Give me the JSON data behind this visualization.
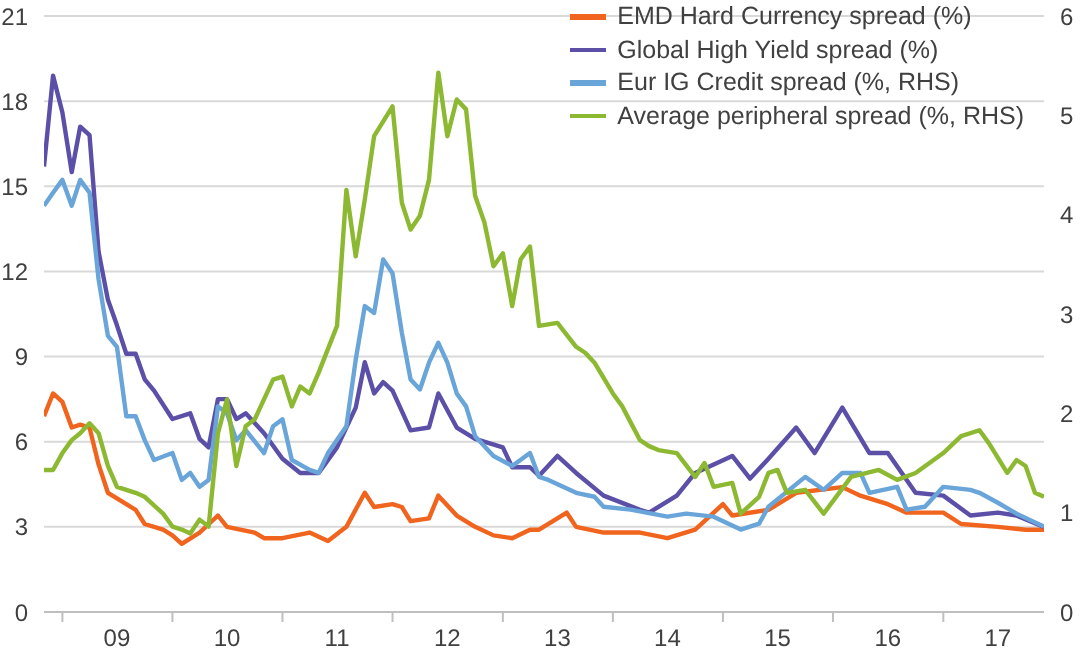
{
  "chart_data": {
    "type": "line",
    "xlim": [
      "2008-11-01",
      "2017-12-01"
    ],
    "xticks": [
      {
        "value": "2009-01-01",
        "label": null
      },
      {
        "value": "2009-07-01",
        "label": "09"
      },
      {
        "value": "2010-01-01",
        "label": null
      },
      {
        "value": "2010-07-01",
        "label": "10"
      },
      {
        "value": "2011-01-01",
        "label": null
      },
      {
        "value": "2011-07-01",
        "label": "11"
      },
      {
        "value": "2012-01-01",
        "label": null
      },
      {
        "value": "2012-07-01",
        "label": "12"
      },
      {
        "value": "2013-01-01",
        "label": null
      },
      {
        "value": "2013-07-01",
        "label": "13"
      },
      {
        "value": "2014-01-01",
        "label": null
      },
      {
        "value": "2014-07-01",
        "label": "14"
      },
      {
        "value": "2015-01-01",
        "label": null
      },
      {
        "value": "2015-07-01",
        "label": "15"
      },
      {
        "value": "2016-01-01",
        "label": null
      },
      {
        "value": "2016-07-01",
        "label": "16"
      },
      {
        "value": "2017-01-01",
        "label": null
      },
      {
        "value": "2017-07-01",
        "label": "17"
      }
    ],
    "ylim": [
      0,
      21
    ],
    "yticks": [
      0,
      3,
      6,
      9,
      12,
      15,
      18,
      21
    ],
    "y2lim": [
      0,
      6
    ],
    "y2ticks": [
      0,
      1,
      2,
      3,
      4,
      5,
      6
    ],
    "grid": "y",
    "legend": "top right",
    "marker": "none",
    "line_style": "solid",
    "series": [
      {
        "name": "EMD Hard Currency spread (%)",
        "color": "#f0641e",
        "x": [
          "2008-11",
          "2008-12",
          "2009-01",
          "2009-02",
          "2009-03",
          "2009-04",
          "2009-05",
          "2009-06",
          "2009-07",
          "2009-09",
          "2009-10",
          "2009-12",
          "2010-01",
          "2010-02",
          "2010-04",
          "2010-06",
          "2010-07",
          "2010-10",
          "2010-11",
          "2011-01",
          "2011-04",
          "2011-06",
          "2011-08",
          "2011-10",
          "2011-11",
          "2012-01",
          "2012-02",
          "2012-03",
          "2012-05",
          "2012-06",
          "2012-08",
          "2012-10",
          "2012-12",
          "2013-02",
          "2013-04",
          "2013-05",
          "2013-08",
          "2013-09",
          "2013-12",
          "2014-04",
          "2014-07",
          "2014-10",
          "2015-01",
          "2015-02",
          "2015-06",
          "2015-09",
          "2016-02",
          "2016-04",
          "2016-07",
          "2016-09",
          "2017-01",
          "2017-03",
          "2017-07",
          "2017-10",
          "2017-12"
        ],
        "values": [
          6.9,
          7.7,
          7.4,
          6.5,
          6.6,
          6.5,
          5.2,
          4.2,
          4.0,
          3.6,
          3.1,
          2.9,
          2.7,
          2.4,
          2.8,
          3.4,
          3.0,
          2.8,
          2.6,
          2.6,
          2.8,
          2.5,
          3.0,
          4.2,
          3.7,
          3.8,
          3.7,
          3.2,
          3.3,
          4.1,
          3.4,
          3.0,
          2.7,
          2.6,
          2.9,
          2.9,
          3.5,
          3.0,
          2.8,
          2.8,
          2.6,
          2.9,
          3.8,
          3.4,
          3.6,
          4.2,
          4.4,
          4.1,
          3.8,
          3.5,
          3.5,
          3.1,
          3.0,
          2.9,
          2.9
        ]
      },
      {
        "name": "Global High Yield spread (%)",
        "color": "#5b4fa8",
        "x": [
          "2008-11",
          "2008-12",
          "2009-01",
          "2009-02",
          "2009-03",
          "2009-04",
          "2009-05",
          "2009-06",
          "2009-07",
          "2009-08",
          "2009-09",
          "2009-10",
          "2009-11",
          "2010-01",
          "2010-03",
          "2010-04",
          "2010-05",
          "2010-06",
          "2010-07",
          "2010-08",
          "2010-09",
          "2010-11",
          "2011-01",
          "2011-03",
          "2011-05",
          "2011-07",
          "2011-09",
          "2011-10",
          "2011-11",
          "2011-12",
          "2012-01",
          "2012-03",
          "2012-05",
          "2012-06",
          "2012-08",
          "2012-10",
          "2013-01",
          "2013-02",
          "2013-04",
          "2013-05",
          "2013-07",
          "2013-09",
          "2013-12",
          "2014-04",
          "2014-05",
          "2014-08",
          "2014-10",
          "2015-02",
          "2015-04",
          "2015-06",
          "2015-09",
          "2015-11",
          "2016-02",
          "2016-05",
          "2016-07",
          "2016-10",
          "2017-01",
          "2017-04",
          "2017-07",
          "2017-09",
          "2017-12"
        ],
        "values": [
          15.7,
          18.9,
          17.6,
          15.5,
          17.1,
          16.8,
          12.7,
          11.0,
          10.1,
          9.1,
          9.1,
          8.2,
          7.8,
          6.8,
          7.0,
          6.1,
          5.8,
          7.5,
          7.5,
          6.8,
          7.0,
          6.3,
          5.4,
          4.9,
          4.9,
          5.8,
          7.2,
          8.8,
          7.7,
          8.1,
          7.8,
          6.4,
          6.5,
          7.7,
          6.5,
          6.1,
          5.8,
          5.1,
          5.1,
          4.8,
          5.5,
          4.9,
          4.1,
          3.6,
          3.5,
          4.1,
          4.9,
          5.5,
          4.7,
          5.4,
          6.5,
          5.6,
          7.2,
          5.6,
          5.6,
          4.2,
          4.1,
          3.4,
          3.5,
          3.4,
          3.0
        ]
      },
      {
        "name": "Eur IG Credit spread (%, RHS)",
        "color": "#69a5d9",
        "axis": "y2",
        "x": [
          "2008-11",
          "2008-12",
          "2009-01",
          "2009-02",
          "2009-03",
          "2009-04",
          "2009-05",
          "2009-06",
          "2009-07",
          "2009-08",
          "2009-09",
          "2009-10",
          "2009-11",
          "2010-01",
          "2010-02",
          "2010-03",
          "2010-04",
          "2010-05",
          "2010-06",
          "2010-07",
          "2010-08",
          "2010-09",
          "2010-11",
          "2010-12",
          "2011-01",
          "2011-02",
          "2011-04",
          "2011-05",
          "2011-06",
          "2011-08",
          "2011-09",
          "2011-10",
          "2011-11",
          "2011-12",
          "2012-01",
          "2012-02",
          "2012-03",
          "2012-04",
          "2012-05",
          "2012-06",
          "2012-07",
          "2012-08",
          "2012-09",
          "2012-10",
          "2012-12",
          "2013-02",
          "2013-04",
          "2013-05",
          "2013-06",
          "2013-09",
          "2013-11",
          "2013-12",
          "2014-03",
          "2014-07",
          "2014-09",
          "2014-12",
          "2015-03",
          "2015-05",
          "2015-06",
          "2015-10",
          "2015-12",
          "2016-02",
          "2016-04",
          "2016-05",
          "2016-08",
          "2016-09",
          "2016-11",
          "2017-01",
          "2017-04",
          "2017-05",
          "2017-07",
          "2017-09",
          "2017-12"
        ],
        "values": [
          4.09,
          4.22,
          4.35,
          4.09,
          4.35,
          4.22,
          3.35,
          2.78,
          2.67,
          1.97,
          1.97,
          1.73,
          1.53,
          1.6,
          1.33,
          1.4,
          1.26,
          1.33,
          2.07,
          2.0,
          1.73,
          1.83,
          1.6,
          1.87,
          1.94,
          1.53,
          1.43,
          1.4,
          1.6,
          1.87,
          2.54,
          3.08,
          3.01,
          3.55,
          3.41,
          2.81,
          2.34,
          2.24,
          2.51,
          2.71,
          2.51,
          2.2,
          2.07,
          1.77,
          1.57,
          1.47,
          1.6,
          1.36,
          1.33,
          1.2,
          1.16,
          1.06,
          1.03,
          0.96,
          0.99,
          0.96,
          0.83,
          0.89,
          1.06,
          1.36,
          1.23,
          1.4,
          1.4,
          1.2,
          1.26,
          1.03,
          1.06,
          1.26,
          1.23,
          1.2,
          1.1,
          0.99,
          0.86
        ]
      },
      {
        "name": "Average peripheral spread (%, RHS)",
        "color": "#8db832",
        "axis": "y2",
        "x": [
          "2008-11",
          "2008-12",
          "2009-01",
          "2009-02",
          "2009-03",
          "2009-04",
          "2009-05",
          "2009-06",
          "2009-07",
          "2009-09",
          "2009-10",
          "2009-12",
          "2010-01",
          "2010-02",
          "2010-03",
          "2010-04",
          "2010-05",
          "2010-06",
          "2010-07",
          "2010-08",
          "2010-09",
          "2010-10",
          "2010-12",
          "2011-01",
          "2011-02",
          "2011-03",
          "2011-04",
          "2011-05",
          "2011-07",
          "2011-08",
          "2011-09",
          "2011-10",
          "2011-11",
          "2012-01",
          "2012-02",
          "2012-03",
          "2012-04",
          "2012-05",
          "2012-06",
          "2012-07",
          "2012-08",
          "2012-09",
          "2012-10",
          "2012-11",
          "2012-12",
          "2013-01",
          "2013-02",
          "2013-03",
          "2013-04",
          "2013-05",
          "2013-07",
          "2013-09",
          "2013-10",
          "2013-11",
          "2014-01",
          "2014-02",
          "2014-04",
          "2014-05",
          "2014-06",
          "2014-08",
          "2014-10",
          "2014-11",
          "2014-12",
          "2015-02",
          "2015-03",
          "2015-05",
          "2015-06",
          "2015-07",
          "2015-08",
          "2015-10",
          "2015-12",
          "2016-03",
          "2016-06",
          "2016-08",
          "2016-10",
          "2017-01",
          "2017-03",
          "2017-05",
          "2017-06",
          "2017-08",
          "2017-09",
          "2017-10",
          "2017-11",
          "2017-12"
        ],
        "values": [
          1.43,
          1.43,
          1.6,
          1.73,
          1.8,
          1.9,
          1.8,
          1.47,
          1.26,
          1.2,
          1.16,
          0.99,
          0.86,
          0.83,
          0.79,
          0.93,
          0.86,
          1.8,
          2.14,
          1.47,
          1.87,
          1.94,
          2.34,
          2.37,
          2.07,
          2.27,
          2.2,
          2.41,
          2.88,
          4.25,
          3.58,
          4.15,
          4.79,
          5.09,
          4.12,
          3.85,
          3.99,
          4.35,
          5.43,
          4.79,
          5.16,
          5.06,
          4.19,
          3.92,
          3.48,
          3.61,
          3.08,
          3.55,
          3.68,
          2.88,
          2.91,
          2.67,
          2.61,
          2.51,
          2.2,
          2.07,
          1.73,
          1.67,
          1.63,
          1.6,
          1.36,
          1.5,
          1.26,
          1.3,
          0.99,
          1.16,
          1.4,
          1.43,
          1.2,
          1.23,
          0.99,
          1.36,
          1.43,
          1.33,
          1.4,
          1.6,
          1.77,
          1.83,
          1.7,
          1.4,
          1.53,
          1.47,
          1.2,
          1.16
        ]
      }
    ]
  }
}
